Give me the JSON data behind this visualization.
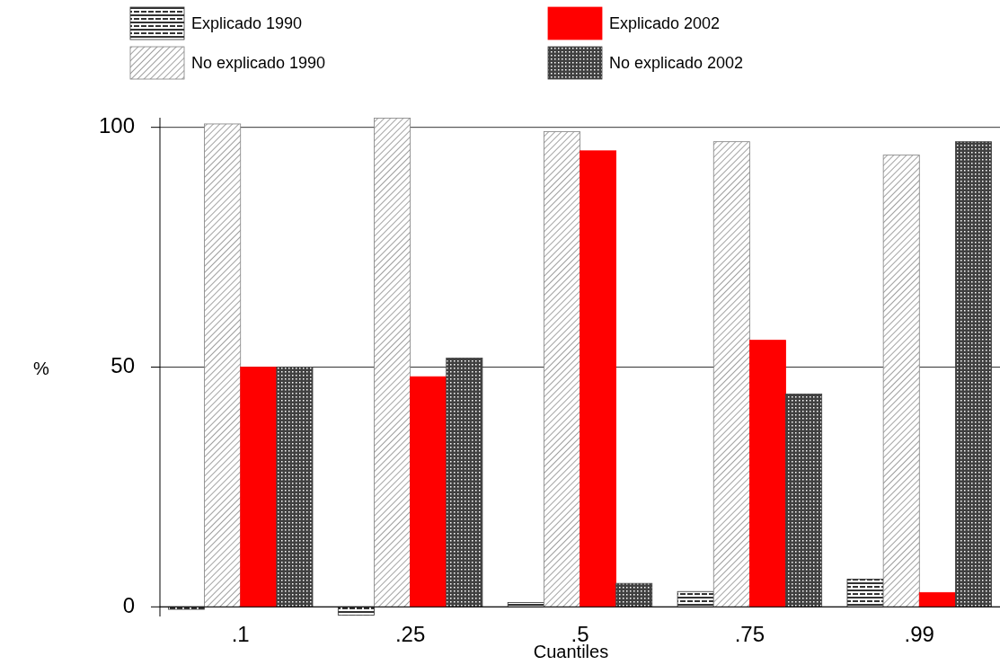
{
  "chart_data": {
    "type": "bar",
    "xlabel": "Cuantiles",
    "ylabel": "%",
    "categories": [
      ".1",
      ".25",
      ".5",
      ".75",
      ".99"
    ],
    "series": [
      {
        "name": "Explicado 1990",
        "color": "#333333",
        "values": [
          -0.5,
          -1.7,
          0.9,
          3.2,
          5.8
        ]
      },
      {
        "name": "No explicado 1990",
        "color": "#808080",
        "values": [
          100.7,
          101.9,
          99.1,
          97,
          94.2
        ]
      },
      {
        "name": "Explicado 2002",
        "color": "#ff0000",
        "values": [
          50,
          48,
          95.1,
          55.6,
          3
        ]
      },
      {
        "name": "No explicado 2002",
        "color": "#404040",
        "values": [
          50,
          51.9,
          4.9,
          44.4,
          97
        ]
      }
    ],
    "ylim": [
      -2,
      102
    ],
    "yticks": [
      0,
      50,
      100
    ],
    "grid": "y",
    "legend": "top"
  }
}
